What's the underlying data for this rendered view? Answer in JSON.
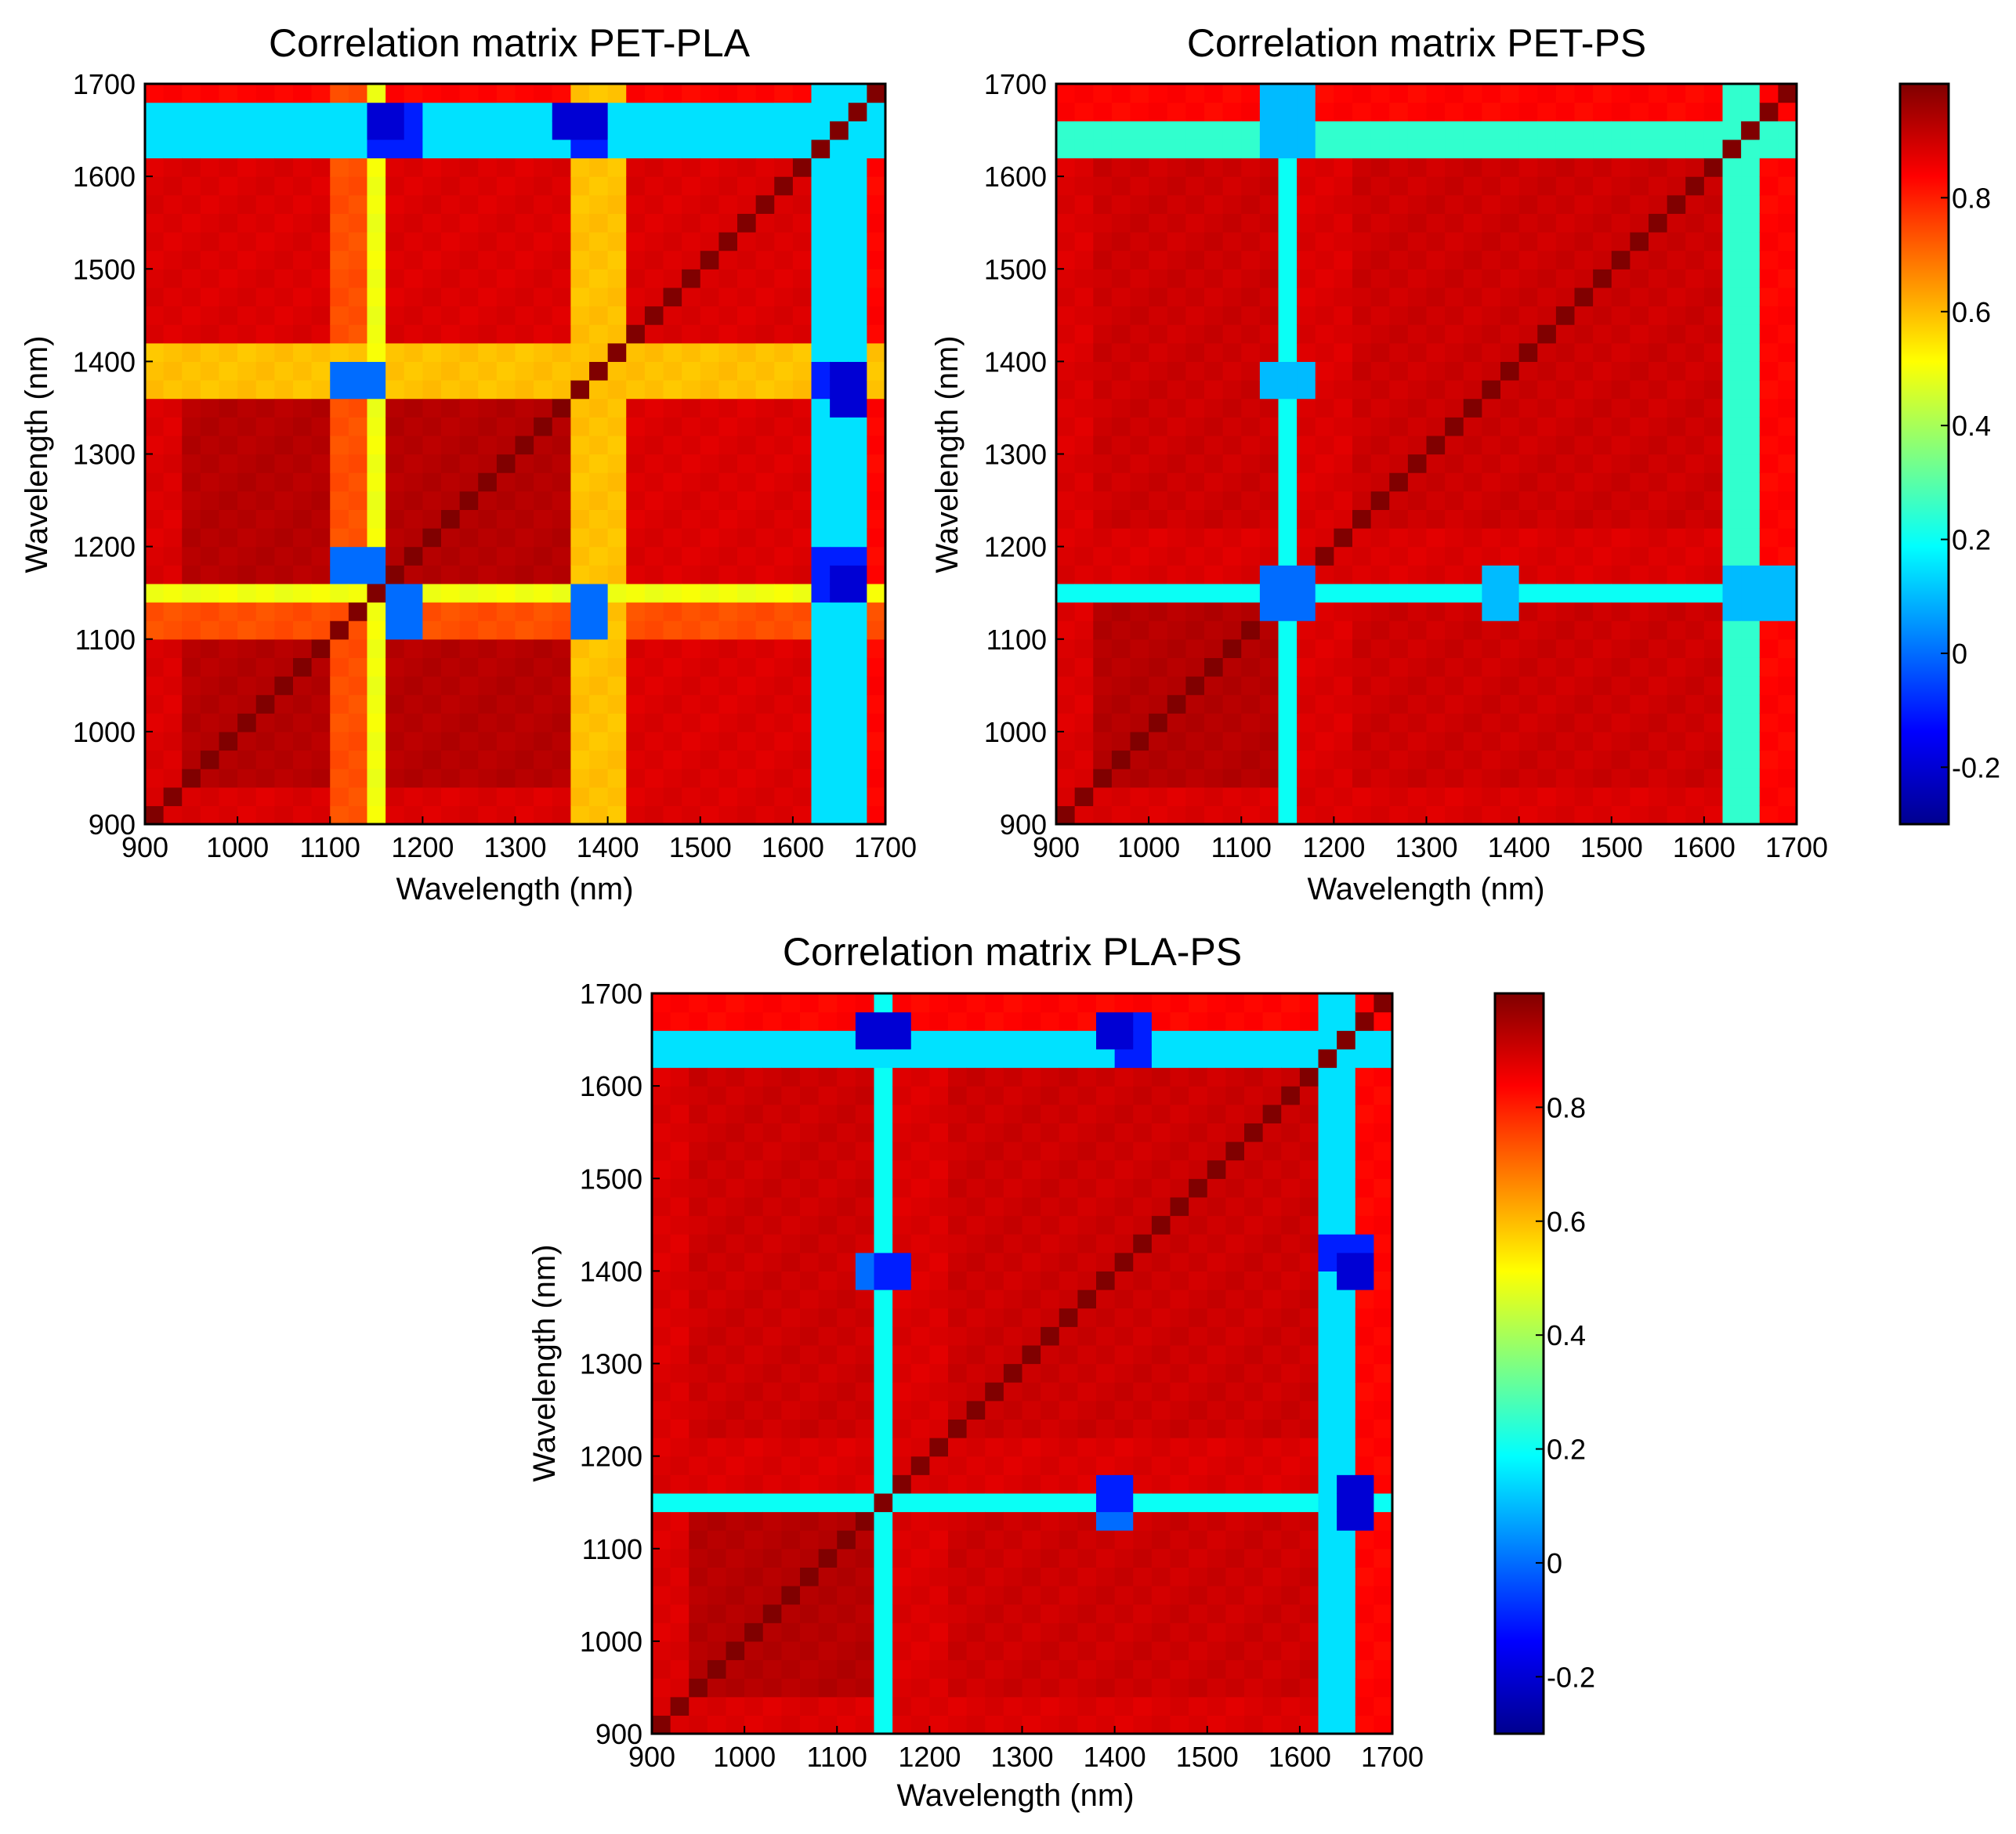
{
  "figure": {
    "colormap": [
      "#00008f",
      "#0000ff",
      "#0080ff",
      "#00ffff",
      "#80ff80",
      "#ffff00",
      "#ff8000",
      "#ff0000",
      "#800000"
    ],
    "color_range": [
      -0.3,
      1.0
    ]
  },
  "chart_data": [
    {
      "type": "heatmap",
      "title": "Correlation matrix PET-PLA",
      "xlabel": "Wavelength (nm)",
      "ylabel": "Wavelength (nm)",
      "xlim": [
        900,
        1700
      ],
      "ylim": [
        900,
        1700
      ],
      "xticks": [
        "900",
        "1000",
        "1100",
        "1200",
        "1300",
        "1400",
        "1500",
        "1600",
        "1700"
      ],
      "yticks": [
        "900",
        "1000",
        "1100",
        "1200",
        "1300",
        "1400",
        "1500",
        "1600",
        "1700"
      ],
      "segments": [
        {
          "range": [
            900,
            950
          ],
          "v": 0.9
        },
        {
          "range": [
            950,
            1100
          ],
          "v": 0.95
        },
        {
          "range": [
            1100,
            1150
          ],
          "v": 0.75
        },
        {
          "range": [
            1150,
            1170
          ],
          "v": 0.5
        },
        {
          "range": [
            1170,
            1360
          ],
          "v": 0.95
        },
        {
          "range": [
            1360,
            1420
          ],
          "v": 0.6
        },
        {
          "range": [
            1420,
            1630
          ],
          "v": 0.9
        },
        {
          "range": [
            1630,
            1680
          ],
          "v": 0.15
        },
        {
          "range": [
            1680,
            1700
          ],
          "v": 0.85
        }
      ],
      "dips": [
        {
          "x": 1160,
          "y": 1660,
          "v": -0.2
        },
        {
          "x": 1370,
          "y": 1660,
          "v": -0.2
        },
        {
          "x": 1650,
          "y": 1380,
          "v": -0.1
        },
        {
          "x": 1650,
          "y": 1170,
          "v": -0.1
        },
        {
          "x": 1180,
          "y": 1130,
          "v": 0.0
        },
        {
          "x": 1380,
          "y": 1130,
          "v": 0.0
        }
      ]
    },
    {
      "type": "heatmap",
      "title": "Correlation matrix PET-PS",
      "xlabel": "Wavelength (nm)",
      "ylabel": "Wavelength (nm)",
      "xlim": [
        900,
        1700
      ],
      "ylim": [
        900,
        1700
      ],
      "xticks": [
        "900",
        "1000",
        "1100",
        "1200",
        "1300",
        "1400",
        "1500",
        "1600",
        "1700"
      ],
      "yticks": [
        "900",
        "1000",
        "1100",
        "1200",
        "1300",
        "1400",
        "1500",
        "1600",
        "1700"
      ],
      "colorbar": {
        "ticks": [
          "-0.2",
          "0",
          "0.2",
          "0.4",
          "0.6",
          "0.8"
        ],
        "values": [
          -0.2,
          0,
          0.2,
          0.4,
          0.6,
          0.8
        ]
      },
      "segments": [
        {
          "range": [
            900,
            950
          ],
          "v": 0.9
        },
        {
          "range": [
            950,
            1140
          ],
          "v": 0.95
        },
        {
          "range": [
            1140,
            1160
          ],
          "v": 0.2
        },
        {
          "range": [
            1160,
            1220
          ],
          "v": 0.9
        },
        {
          "range": [
            1220,
            1620
          ],
          "v": 0.92
        },
        {
          "range": [
            1620,
            1660
          ],
          "v": 0.25
        },
        {
          "range": [
            1660,
            1700
          ],
          "v": 0.85
        }
      ],
      "dips": [
        {
          "x": 1150,
          "y": 1150,
          "v": 0.0
        },
        {
          "x": 1380,
          "y": 1150,
          "v": 0.1
        },
        {
          "x": 1650,
          "y": 1150,
          "v": 0.1
        },
        {
          "x": 1150,
          "y": 1670,
          "v": 0.1
        }
      ]
    },
    {
      "type": "heatmap",
      "title": "Correlation matrix PLA-PS",
      "xlabel": "Wavelength (nm)",
      "ylabel": "Wavelength (nm)",
      "xlim": [
        900,
        1700
      ],
      "ylim": [
        900,
        1700
      ],
      "xticks": [
        "900",
        "1000",
        "1100",
        "1200",
        "1300",
        "1400",
        "1500",
        "1600",
        "1700"
      ],
      "yticks": [
        "900",
        "1000",
        "1100",
        "1200",
        "1300",
        "1400",
        "1500",
        "1600",
        "1700"
      ],
      "colorbar": {
        "ticks": [
          "-0.2",
          "0",
          "0.2",
          "0.4",
          "0.6",
          "0.8"
        ],
        "values": [
          -0.2,
          0,
          0.2,
          0.4,
          0.6,
          0.8
        ]
      },
      "segments": [
        {
          "range": [
            900,
            950
          ],
          "v": 0.9
        },
        {
          "range": [
            950,
            1140
          ],
          "v": 0.95
        },
        {
          "range": [
            1140,
            1160
          ],
          "v": 0.2
        },
        {
          "range": [
            1160,
            1230
          ],
          "v": 0.9
        },
        {
          "range": [
            1230,
            1620
          ],
          "v": 0.92
        },
        {
          "range": [
            1620,
            1660
          ],
          "v": 0.15
        },
        {
          "range": [
            1660,
            1700
          ],
          "v": 0.85
        }
      ],
      "dips": [
        {
          "x": 1150,
          "y": 1660,
          "v": -0.2
        },
        {
          "x": 1400,
          "y": 1660,
          "v": -0.2
        },
        {
          "x": 1650,
          "y": 1420,
          "v": -0.1
        },
        {
          "x": 1400,
          "y": 1160,
          "v": -0.1
        },
        {
          "x": 1150,
          "y": 1400,
          "v": 0.0
        }
      ]
    }
  ]
}
